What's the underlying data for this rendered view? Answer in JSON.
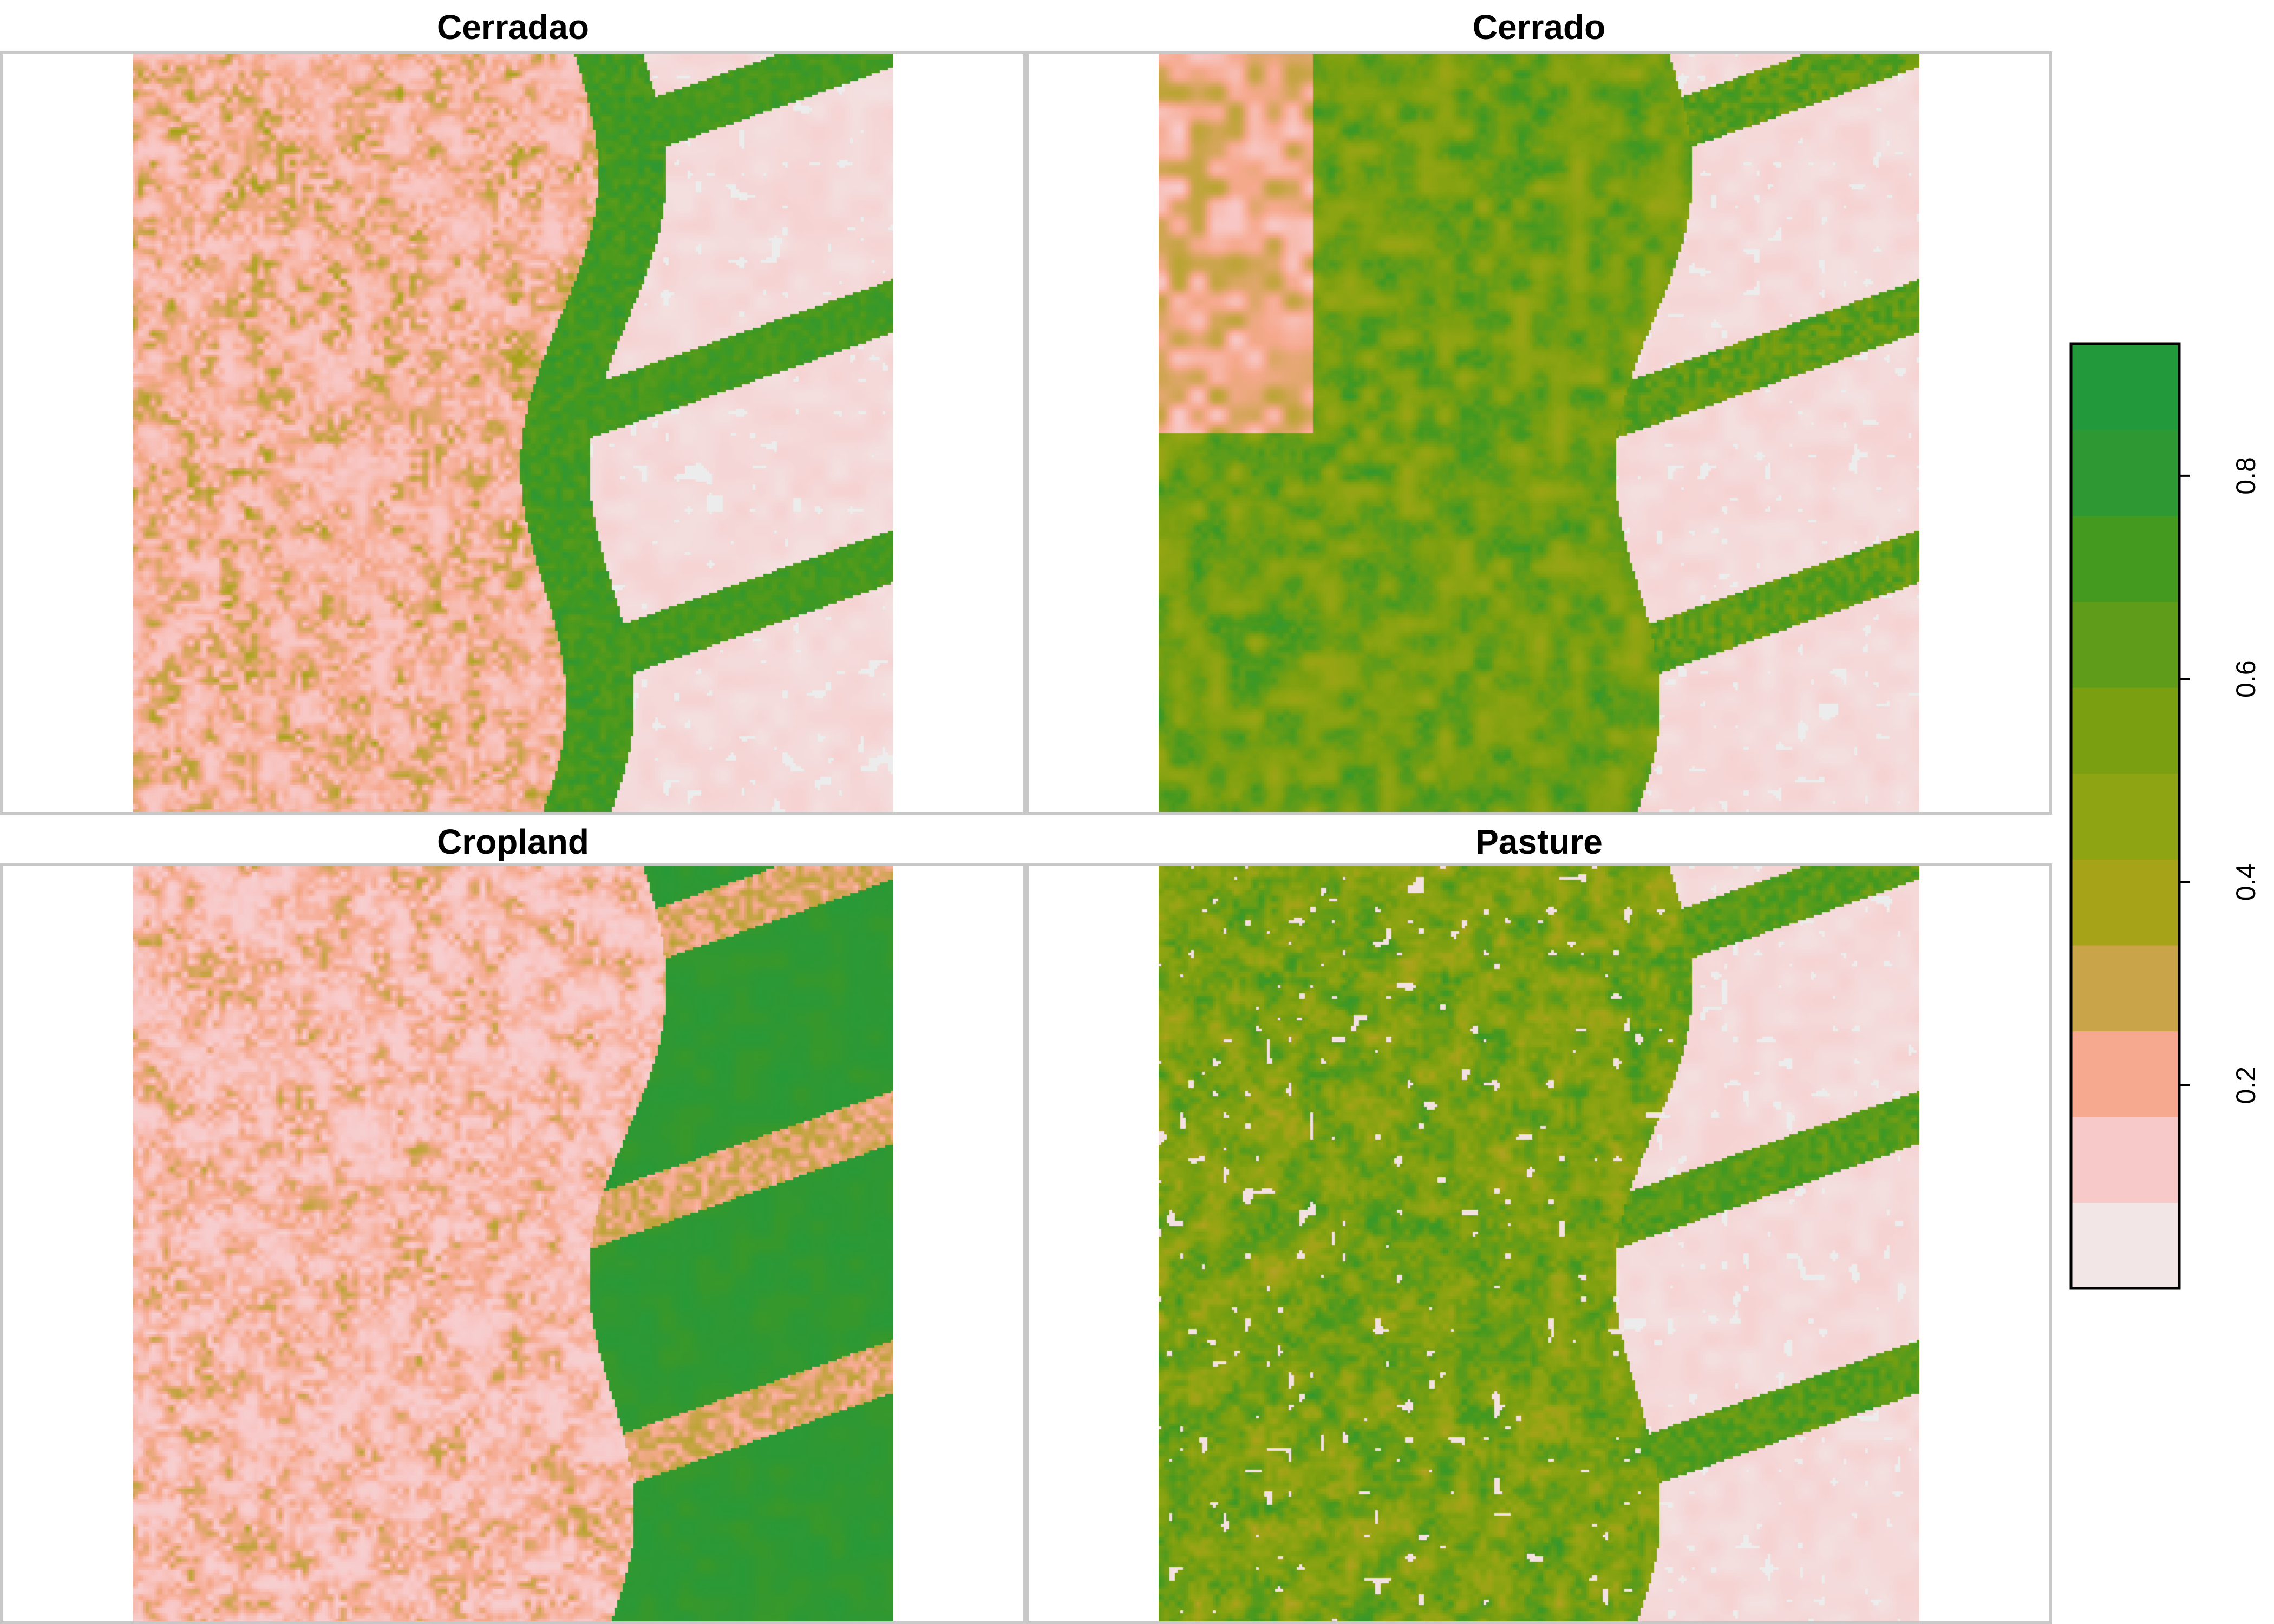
{
  "chart_data": {
    "type": "heatmap",
    "panels": [
      {
        "title": "Cerradao",
        "pattern": "cerradao"
      },
      {
        "title": "Cerrado",
        "pattern": "cerrado"
      },
      {
        "title": "Cropland",
        "pattern": "cropland"
      },
      {
        "title": "Pasture",
        "pattern": "pasture"
      }
    ],
    "colorbar": {
      "range": [
        0.0,
        0.93
      ],
      "ticks": [
        0.2,
        0.4,
        0.6,
        0.8
      ],
      "tick_labels": [
        "0.2",
        "0.4",
        "0.6",
        "0.8"
      ],
      "colors": [
        "#f2e6e6",
        "#f8c9c9",
        "#f6a98e",
        "#c9a448",
        "#a7a319",
        "#8ea412",
        "#7a9f10",
        "#5e9c1a",
        "#44991f",
        "#2e9833",
        "#229a3c"
      ]
    },
    "no_data_color": "#ececec"
  }
}
